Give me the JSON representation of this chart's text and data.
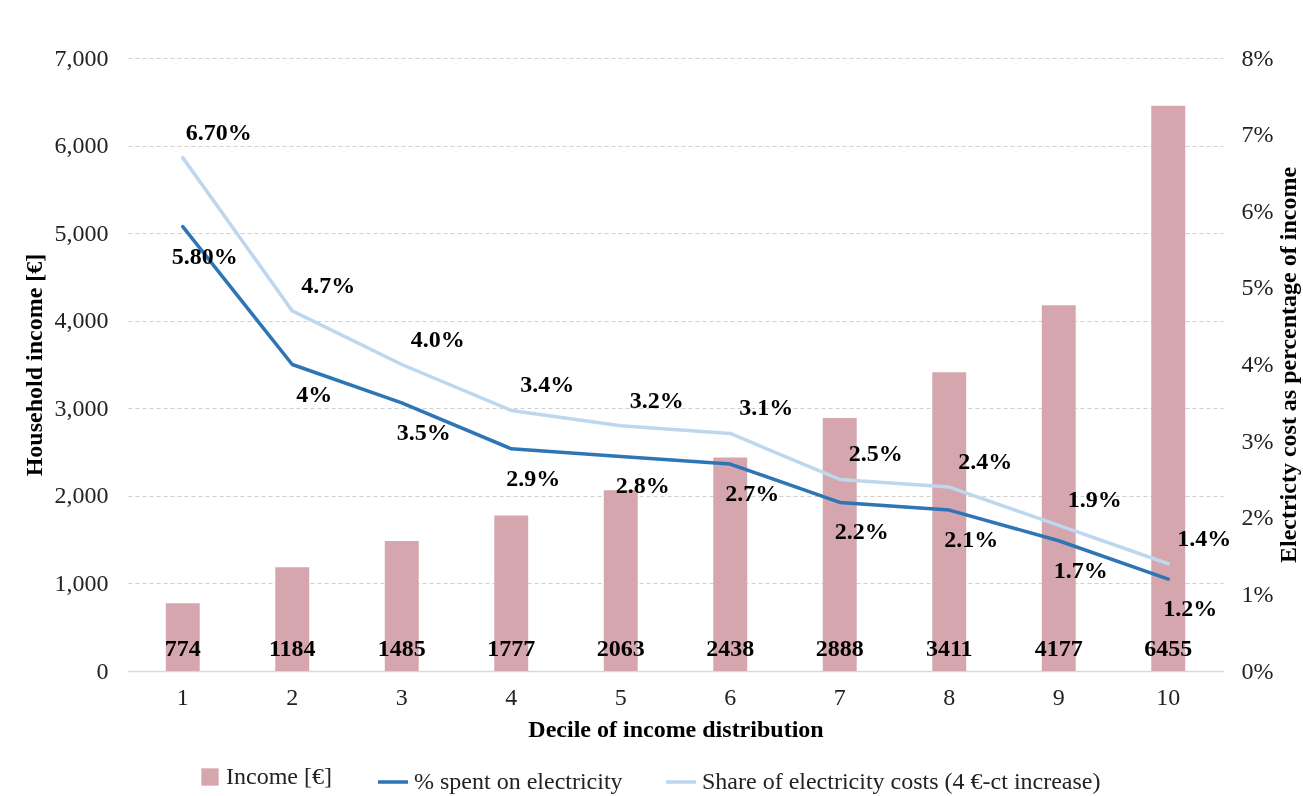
{
  "chart_data": {
    "type": "bar",
    "categories": [
      "1",
      "2",
      "3",
      "4",
      "5",
      "6",
      "7",
      "8",
      "9",
      "10"
    ],
    "xlabel": "Decile of income distribution",
    "ylabel": "Household income [€]",
    "y2label": "Electricty cost as percentage of income",
    "ylim": [
      0,
      7000
    ],
    "yticks": [
      0,
      {
        "value": 1000,
        "label": "1,000"
      },
      {
        "value": 2000,
        "label": "2,000"
      },
      {
        "value": 3000,
        "label": "3,000"
      },
      {
        "value": 4000,
        "label": "4,000"
      },
      {
        "value": 5000,
        "label": "5,000"
      },
      {
        "value": 6000,
        "label": "6,000"
      },
      {
        "value": 7000,
        "label": "7,000"
      }
    ],
    "y2lim": [
      0,
      8
    ],
    "y2ticks": [
      {
        "value": 0,
        "label": "0%"
      },
      {
        "value": 1,
        "label": "1%"
      },
      {
        "value": 2,
        "label": "2%"
      },
      {
        "value": 3,
        "label": "3%"
      },
      {
        "value": 4,
        "label": "4%"
      },
      {
        "value": 5,
        "label": "5%"
      },
      {
        "value": 6,
        "label": "6%"
      },
      {
        "value": 7,
        "label": "7%"
      },
      {
        "value": 8,
        "label": "8%"
      }
    ],
    "grid": "y",
    "legend": "bottom",
    "series": [
      {
        "name": "Income [€]",
        "color": "#d5a6ad",
        "values": [
          774,
          1184,
          1485,
          1777,
          2063,
          2438,
          2888,
          3411,
          4177,
          6455
        ],
        "value_labels": [
          "774",
          "1184",
          "1485",
          "1777",
          "2063",
          "2438",
          "2888",
          "3411",
          "4177",
          "6455"
        ]
      },
      {
        "name": "% spent on electricity",
        "type": "line",
        "axis": "y2",
        "color": "#2e75b6",
        "values": [
          5.8,
          4,
          3.5,
          2.9,
          2.8,
          2.7,
          2.2,
          2.1,
          1.7,
          1.2
        ],
        "value_labels": [
          "5.80%",
          "4%",
          "3.5%",
          "2.9%",
          "2.8%",
          "2.7%",
          "2.2%",
          "2.1%",
          "1.7%",
          "1.2%"
        ]
      },
      {
        "name": "Share of electricity costs (4 €-ct increase)",
        "type": "line",
        "axis": "y2",
        "color": "#bdd7ee",
        "values": [
          6.7,
          4.7,
          4.0,
          3.4,
          3.2,
          3.1,
          2.5,
          2.4,
          1.9,
          1.4
        ],
        "value_labels": [
          "6.70%",
          "4.7%",
          "4.0%",
          "3.4%",
          "3.2%",
          "3.1%",
          "2.5%",
          "2.4%",
          "1.9%",
          "1.4%"
        ]
      }
    ]
  }
}
